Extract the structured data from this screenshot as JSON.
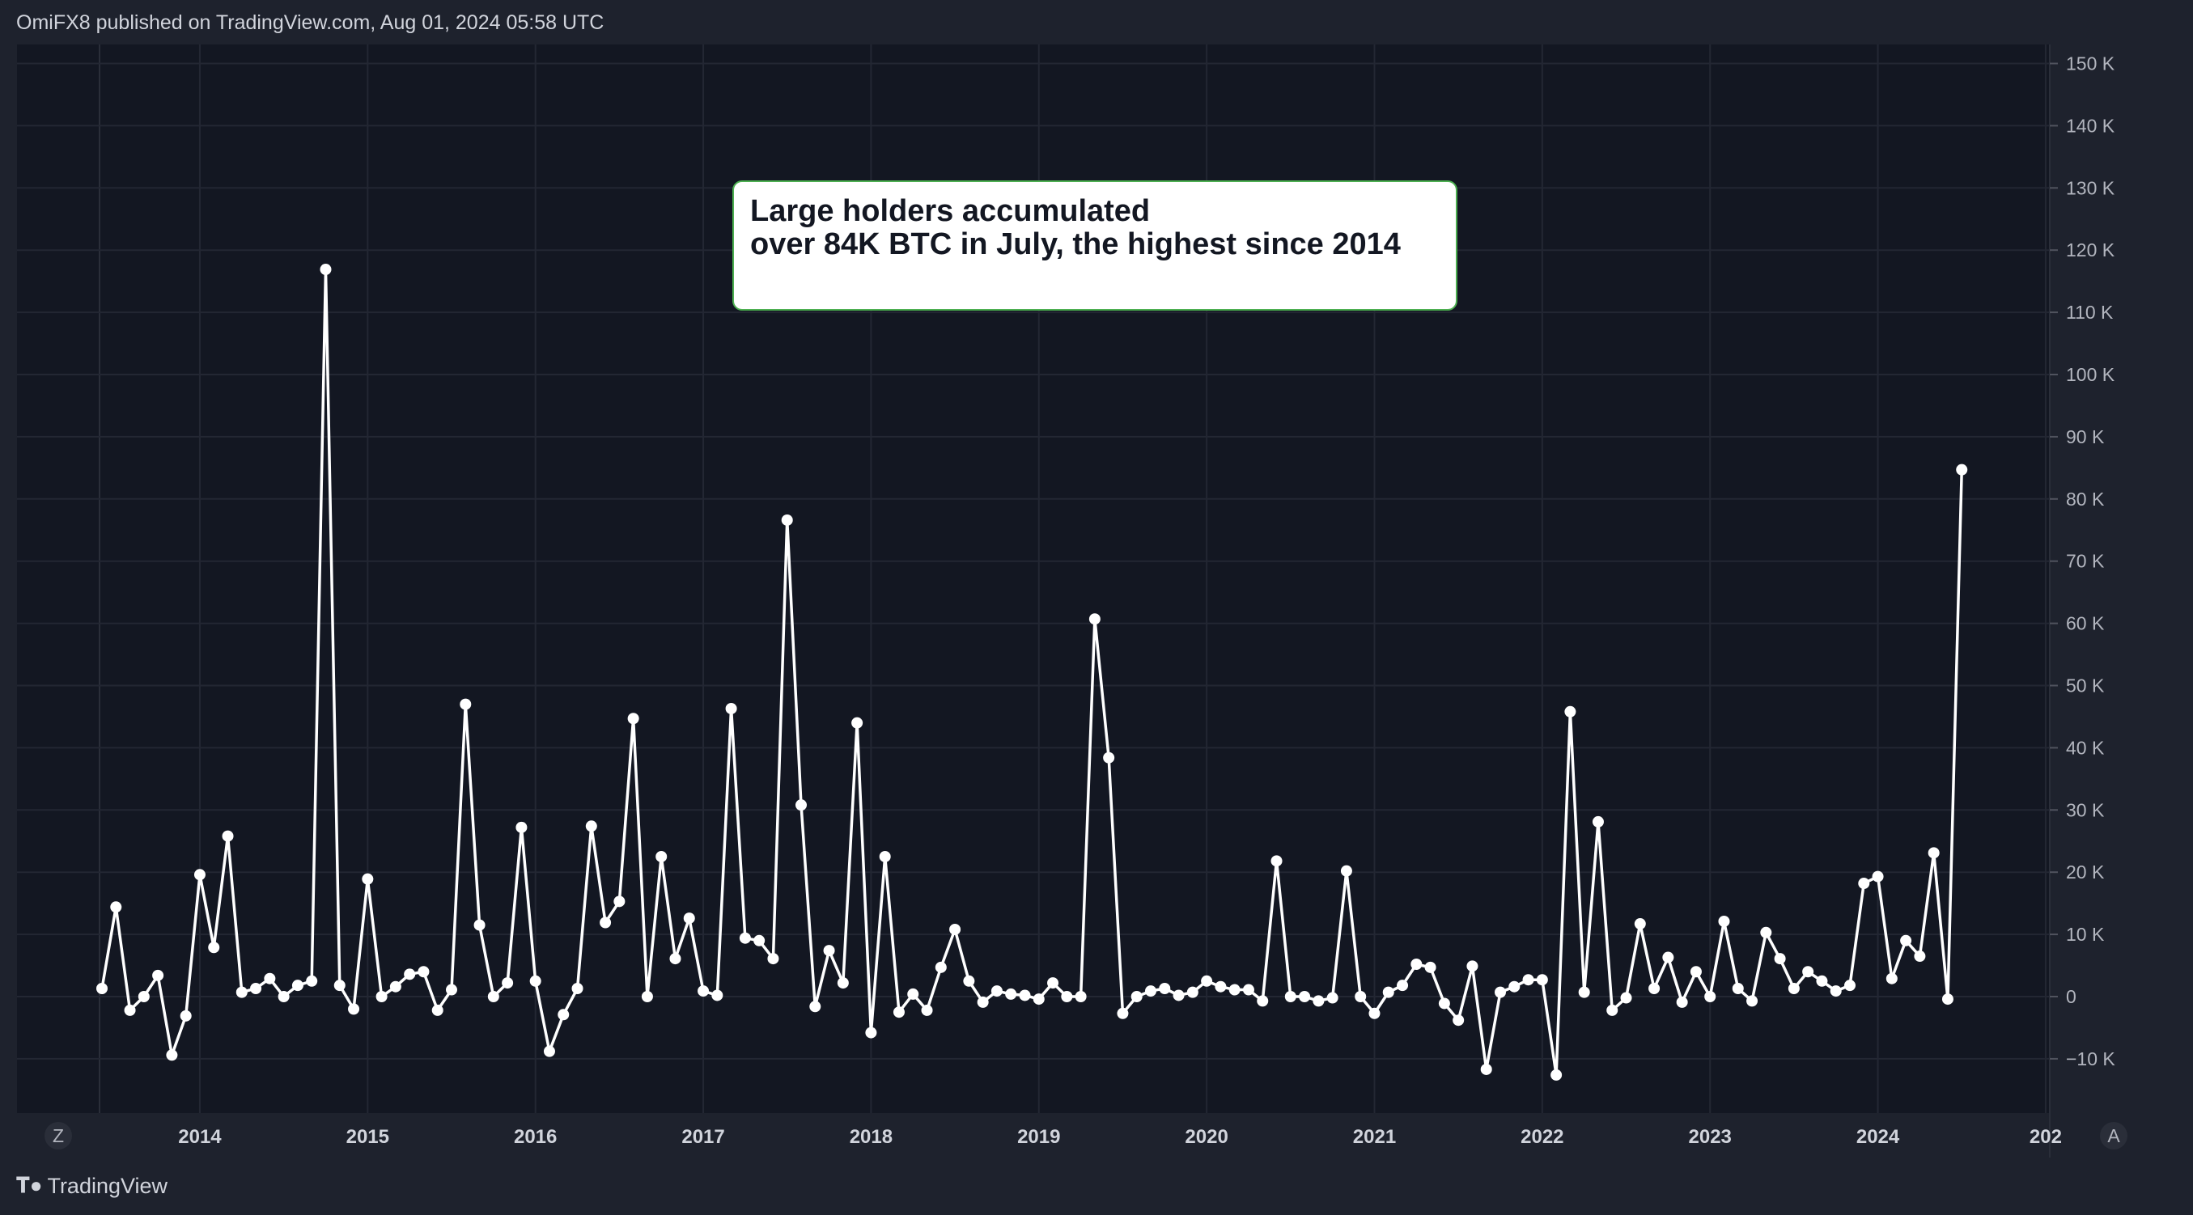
{
  "header": {
    "published": "OmiFX8 published on TradingView.com, Aug 01, 2024 05:58 UTC"
  },
  "annotation": {
    "line1": "Large holders accumulated",
    "line2": "over 84K BTC in July, the highest since 2014",
    "border_color": "#4caf50"
  },
  "footer": {
    "brand": "TradingView"
  },
  "axis_buttons": {
    "left": "Z",
    "right": "A"
  },
  "colors": {
    "background": "#131722",
    "line": "#ffffff",
    "grid": "#232733"
  },
  "chart_data": {
    "type": "line",
    "markers": true,
    "grid": true,
    "x_start": "2013-06",
    "x_interval": "month",
    "x_tick_labels": [
      "2014",
      "2015",
      "2016",
      "2017",
      "2018",
      "2019",
      "2020",
      "2021",
      "2022",
      "2023",
      "2024",
      "202"
    ],
    "y_tick_labels": [
      "150 K",
      "140 K",
      "130 K",
      "120 K",
      "110 K",
      "100 K",
      "90 K",
      "80 K",
      "70 K",
      "60 K",
      "50 K",
      "40 K",
      "30 K",
      "20 K",
      "10 K",
      "0",
      "−10 K"
    ],
    "y_ticks": [
      150000,
      140000,
      130000,
      120000,
      110000,
      100000,
      90000,
      80000,
      70000,
      60000,
      50000,
      40000,
      30000,
      20000,
      10000,
      0,
      -10000
    ],
    "ylim": [
      -19000,
      153000
    ],
    "values": [
      1300,
      14400,
      -2200,
      0,
      3400,
      -9400,
      -3100,
      19600,
      7900,
      25800,
      700,
      1300,
      2900,
      0,
      1800,
      2500,
      116900,
      1800,
      -2000,
      18900,
      0,
      1600,
      3600,
      4000,
      -2200,
      1100,
      47000,
      11500,
      0,
      2200,
      27200,
      2500,
      -8800,
      -2900,
      1300,
      27400,
      11900,
      15300,
      44700,
      0,
      22500,
      6100,
      12600,
      900,
      200,
      46300,
      9400,
      9000,
      6100,
      76600,
      30800,
      -1600,
      7400,
      2200,
      44000,
      -5800,
      22500,
      -2500,
      400,
      -2200,
      4700,
      10800,
      2500,
      -900,
      900,
      400,
      200,
      -400,
      2200,
      0,
      0,
      60700,
      38400,
      -2700,
      0,
      900,
      1300,
      200,
      700,
      2500,
      1600,
      1100,
      1100,
      -700,
      21800,
      0,
      0,
      -700,
      -200,
      20200,
      0,
      -2700,
      700,
      1800,
      5200,
      4700,
      -1100,
      -3800,
      4900,
      -11700,
      700,
      1600,
      2700,
      2700,
      -12600,
      45800,
      700,
      28100,
      -2200,
      -200,
      11700,
      1300,
      6300,
      -900,
      4000,
      0,
      12100,
      1300,
      -700,
      10300,
      6100,
      1300,
      4000,
      2500,
      900,
      1800,
      18200,
      19300,
      2900,
      9000,
      6500,
      23100,
      -400,
      84700
    ]
  }
}
